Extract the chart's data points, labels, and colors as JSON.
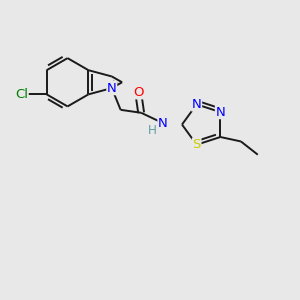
{
  "background_color": "#e8e8e8",
  "bond_color": "#1a1a1a",
  "atom_colors": {
    "Cl": "#008000",
    "N": "#0000ff",
    "O": "#ff0000",
    "S": "#cccc00",
    "H": "#5f9ea0",
    "C": "#1a1a1a"
  },
  "lw": 1.4,
  "fs": 9.5
}
